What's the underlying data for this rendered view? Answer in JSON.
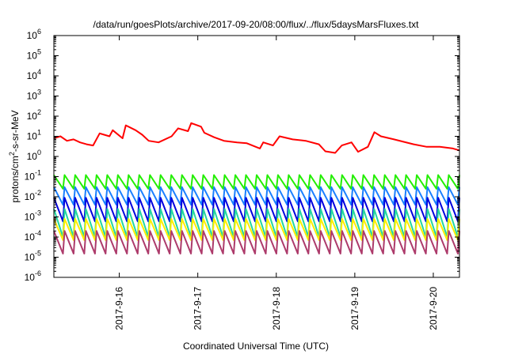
{
  "chart_data": {
    "type": "line",
    "title": "/data/run/goesPlots/archive/2017-09-20/08:00/flux/../flux/5daysMarsFluxes.txt",
    "xlabel": "Coordinated Universal Time (UTC)",
    "ylabel": "protons/cm²-s-sr-MeV",
    "yscale": "log",
    "ylim_exp": [
      -6,
      6
    ],
    "y_ticks": [
      {
        "base": "10",
        "exp": "6"
      },
      {
        "base": "10",
        "exp": "5"
      },
      {
        "base": "10",
        "exp": "4"
      },
      {
        "base": "10",
        "exp": "3"
      },
      {
        "base": "10",
        "exp": "2"
      },
      {
        "base": "10",
        "exp": "1"
      },
      {
        "base": "10",
        "exp": "0"
      },
      {
        "base": "10",
        "exp": "-1"
      },
      {
        "base": "10",
        "exp": "-2"
      },
      {
        "base": "10",
        "exp": "-3"
      },
      {
        "base": "10",
        "exp": "-4"
      },
      {
        "base": "10",
        "exp": "-5"
      },
      {
        "base": "10",
        "exp": "-6"
      }
    ],
    "x_range": [
      "2017-09-15T04:00",
      "2017-09-20T08:00"
    ],
    "x_ticks": [
      "2017-9-16",
      "2017-9-17",
      "2017-9-18",
      "2017-9-19",
      "2017-9-20"
    ],
    "grid": false,
    "legend": "none",
    "series": [
      {
        "color": "#ff0000",
        "x": [
          "2017-09-15T04:00",
          "2017-09-15T06:00",
          "2017-09-15T08:00",
          "2017-09-15T10:00",
          "2017-09-15T12:00",
          "2017-09-15T14:00",
          "2017-09-15T16:00",
          "2017-09-15T18:00",
          "2017-09-15T21:00",
          "2017-09-15T22:00",
          "2017-09-16T01:00",
          "2017-09-16T02:00",
          "2017-09-16T05:00",
          "2017-09-16T07:00",
          "2017-09-16T09:00",
          "2017-09-16T12:00",
          "2017-09-16T16:00",
          "2017-09-16T18:00",
          "2017-09-16T21:00",
          "2017-09-16T22:00",
          "2017-09-17T01:00",
          "2017-09-17T02:00",
          "2017-09-17T05:00",
          "2017-09-17T08:00",
          "2017-09-17T12:00",
          "2017-09-17T15:00",
          "2017-09-17T19:00",
          "2017-09-17T20:00",
          "2017-09-17T23:00",
          "2017-09-18T01:00",
          "2017-09-18T05:00",
          "2017-09-18T09:00",
          "2017-09-18T13:00",
          "2017-09-18T15:00",
          "2017-09-18T18:00",
          "2017-09-18T20:00",
          "2017-09-18T23:00",
          "2017-09-19T01:00",
          "2017-09-19T04:00",
          "2017-09-19T06:00",
          "2017-09-19T08:00",
          "2017-09-19T12:00",
          "2017-09-19T18:00",
          "2017-09-19T22:00",
          "2017-09-20T02:00",
          "2017-09-20T06:00",
          "2017-09-20T08:00"
        ],
        "y": [
          8,
          10,
          6,
          7,
          5,
          4,
          3.5,
          14,
          10,
          20,
          8,
          35,
          20,
          12,
          6,
          5,
          10,
          25,
          18,
          45,
          30,
          15,
          9,
          6,
          5,
          4.5,
          2.5,
          5,
          3.5,
          10,
          7,
          6,
          4,
          1.8,
          1.5,
          3.5,
          5,
          1.7,
          3,
          16,
          10,
          7,
          4,
          3,
          3,
          2.5,
          2
        ]
      }
    ],
    "oscillating_series": [
      {
        "color": "#22ee00",
        "high": 0.12,
        "low": 0.025
      },
      {
        "color": "#1a7fff",
        "high": 0.03,
        "low": 0.004
      },
      {
        "color": "#0000dd",
        "high": 0.009,
        "low": 0.0006
      },
      {
        "color": "#22d6a0",
        "high": 0.0025,
        "low": 0.0001
      },
      {
        "color": "#ffee00",
        "high": 0.0008,
        "low": 7e-05
      },
      {
        "color": "#ad3b6b",
        "high": 0.0002,
        "low": 1.5e-05
      }
    ]
  }
}
